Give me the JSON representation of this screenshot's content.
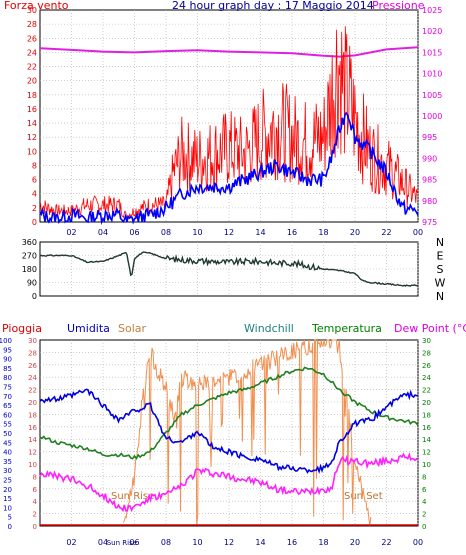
{
  "header": {
    "left_title": "Forza vento",
    "center_title": "24 hour graph day : 17 Maggio 2014",
    "right_title": "Pressione"
  },
  "bottom_header": {
    "pioggia": "Pioggia",
    "umidita": "Umidita",
    "solar": "Solar",
    "windchill": "Windchill",
    "temperatura": "Temperatura",
    "dewpoint": "Dew Point (°C)"
  },
  "annotations": {
    "sun_rise_axis": "Sun Rise",
    "sun_rise_chart": "Sun Rise",
    "sun_set_chart": "Sun Set"
  },
  "colors": {
    "wind": "#ff0000",
    "gust_base": "#0000ff",
    "pressure": "#e020e0",
    "direction": "#203830",
    "humidity": "#0000e0",
    "temperature": "#208020",
    "dewpoint": "#ff20ff",
    "solar": "#f09050",
    "grid": "#b0b0b0",
    "left_axis_wind": "#e00000",
    "right_axis_pressure": "#e000e0",
    "left_axis_humidity": "#0000c0",
    "left_axis_rain": "#e04040",
    "right_axis_temp": "#008000"
  },
  "chart_data": [
    {
      "type": "line",
      "name": "wind-pressure",
      "x_ticks": [
        "02",
        "04",
        "06",
        "08",
        "10",
        "12",
        "14",
        "16",
        "18",
        "20",
        "22",
        "00"
      ],
      "y_left_ticks": [
        "0",
        "2",
        "4",
        "6",
        "8",
        "10",
        "12",
        "14",
        "16",
        "18",
        "20",
        "22",
        "24",
        "26",
        "28",
        "30"
      ],
      "y_right_ticks": [
        "975",
        "980",
        "985",
        "990",
        "995",
        "1000",
        "1005",
        "1010",
        "1015",
        "1020",
        "1025"
      ],
      "ylim_left": [
        0,
        30
      ],
      "ylim_right": [
        975,
        1025
      ],
      "xlim": [
        0,
        24
      ],
      "series": [
        {
          "name": "Forza vento",
          "x": [
            0,
            1,
            2,
            3,
            4,
            5,
            5.5,
            6,
            7,
            8,
            8.5,
            9,
            10,
            11,
            12,
            13,
            14,
            15,
            16,
            17,
            18,
            18.5,
            18.8,
            19,
            19.3,
            19.6,
            20,
            20.5,
            21,
            22,
            23,
            24
          ],
          "y": [
            3,
            2,
            2,
            3,
            3,
            3,
            1,
            2,
            3,
            3,
            9,
            12,
            11,
            12,
            13,
            12,
            15,
            17,
            15,
            14,
            15,
            22,
            27,
            28,
            23,
            22,
            18,
            15,
            12,
            10,
            7,
            4
          ]
        },
        {
          "name": "gust-base",
          "x": [
            0,
            1,
            2,
            3,
            4,
            5,
            5.5,
            6,
            7,
            8,
            9,
            10,
            11,
            12,
            13,
            14,
            15,
            16,
            17,
            18,
            18.5,
            19,
            19.5,
            20,
            21,
            22,
            23,
            24
          ],
          "y": [
            1,
            0.5,
            1,
            0.5,
            1,
            1,
            0,
            0.5,
            1,
            2,
            4,
            5,
            5,
            5,
            6,
            7,
            8,
            7,
            6,
            6,
            9,
            13,
            16,
            12,
            10,
            7,
            2,
            1.5
          ]
        },
        {
          "name": "Pressione",
          "x": [
            0,
            2,
            4,
            6,
            8,
            10,
            12,
            14,
            16,
            18,
            19,
            20,
            21,
            22,
            24
          ],
          "y": [
            1016,
            1015.6,
            1015.2,
            1015,
            1015.3,
            1015.5,
            1015.2,
            1015,
            1014.8,
            1014.2,
            1014,
            1014.3,
            1015,
            1015.7,
            1016.2
          ]
        }
      ]
    },
    {
      "type": "line",
      "name": "wind-direction",
      "x_ticks": [
        "02",
        "04",
        "06",
        "08",
        "10",
        "12",
        "14",
        "16",
        "18",
        "20",
        "22",
        "00"
      ],
      "y_left_ticks": [
        "0",
        "90",
        "180",
        "270",
        "360"
      ],
      "y_right_ticks": [
        "N",
        "W",
        "S",
        "E",
        "N"
      ],
      "ylim": [
        0,
        360
      ],
      "xlim": [
        0,
        24
      ],
      "series": [
        {
          "name": "direction",
          "x": [
            0,
            1,
            2,
            3,
            4,
            5,
            5.5,
            5.8,
            6,
            6.5,
            7,
            8,
            9,
            10,
            11,
            12,
            13,
            14,
            15,
            16,
            17,
            18,
            19,
            20,
            20.5,
            21,
            22,
            23,
            24
          ],
          "y": [
            270,
            270,
            270,
            225,
            230,
            270,
            290,
            120,
            250,
            290,
            285,
            250,
            240,
            235,
            230,
            225,
            230,
            230,
            220,
            220,
            200,
            180,
            170,
            150,
            100,
            90,
            80,
            70,
            70
          ]
        }
      ]
    },
    {
      "type": "line",
      "name": "humidity-temperature",
      "x_ticks": [
        "02",
        "04",
        "Sun Rise",
        "06",
        "08",
        "10",
        "12",
        "14",
        "16",
        "18",
        "20",
        "22",
        "00"
      ],
      "y_left_humidity_ticks": [
        "0",
        "5",
        "10",
        "15",
        "20",
        "25",
        "30",
        "35",
        "40",
        "45",
        "50",
        "55",
        "60",
        "65",
        "70",
        "75",
        "80",
        "85",
        "90",
        "95",
        "100"
      ],
      "y_left_rain_ticks": [
        "0",
        "2",
        "4",
        "6",
        "8",
        "10",
        "12",
        "14",
        "16",
        "18",
        "20",
        "22",
        "24",
        "26",
        "28",
        "30"
      ],
      "y_right_ticks": [
        "0",
        "2",
        "4",
        "6",
        "8",
        "10",
        "12",
        "14",
        "16",
        "18",
        "20",
        "22",
        "24",
        "26",
        "28",
        "30"
      ],
      "ylim_humidity": [
        0,
        100
      ],
      "ylim_temp": [
        0,
        30
      ],
      "xlim": [
        0,
        24
      ],
      "series": [
        {
          "name": "Umidita",
          "x": [
            0,
            1,
            2,
            3,
            4,
            5,
            6,
            7,
            8,
            9,
            10,
            11,
            12,
            13,
            14,
            15,
            16,
            17,
            18,
            18.5,
            19,
            20,
            21,
            22,
            23,
            24
          ],
          "y": [
            68,
            68,
            70,
            73,
            65,
            57,
            62,
            65,
            47,
            45,
            51,
            42,
            40,
            37,
            36,
            32,
            31,
            30,
            31,
            34,
            45,
            55,
            57,
            64,
            70,
            71
          ]
        },
        {
          "name": "Temperatura",
          "x": [
            0,
            1,
            2,
            3,
            4,
            5,
            6,
            7,
            8,
            9,
            10,
            11,
            12,
            13,
            14,
            15,
            16,
            17,
            18,
            19,
            20,
            21,
            22,
            23,
            24
          ],
          "y": [
            14.5,
            13.5,
            13,
            12.5,
            11.5,
            11.5,
            11,
            12,
            15,
            18,
            19.5,
            20.5,
            21.5,
            22,
            23,
            24,
            25,
            25.5,
            24.5,
            22,
            20,
            18.5,
            17.5,
            17,
            16.5
          ]
        },
        {
          "name": "Dew Point (°C)",
          "x": [
            0,
            1,
            2,
            3,
            4,
            5,
            6,
            7,
            8,
            9,
            10,
            11,
            12,
            13,
            14,
            15,
            16,
            17,
            18,
            18.5,
            19,
            20,
            21,
            22,
            23,
            24
          ],
          "y": [
            8.5,
            8,
            7.5,
            6.5,
            5,
            3,
            3,
            4.5,
            5,
            6.5,
            9,
            8.5,
            8,
            7.5,
            7,
            6,
            5.5,
            5.5,
            6,
            6,
            10.5,
            10.5,
            10,
            10.5,
            11,
            11
          ]
        },
        {
          "name": "Solar",
          "x": [
            5.3,
            6,
            6.5,
            7,
            7.5,
            8,
            8.5,
            9,
            10,
            11,
            12,
            13,
            14,
            15,
            16,
            17,
            18,
            18.5,
            19,
            19.5,
            20,
            20.5,
            21
          ],
          "y": [
            0,
            8,
            20,
            28,
            25,
            22,
            18,
            24,
            23,
            23,
            24,
            25,
            26,
            27,
            28,
            29,
            30,
            30,
            29,
            20,
            10,
            5,
            0
          ]
        }
      ]
    }
  ]
}
